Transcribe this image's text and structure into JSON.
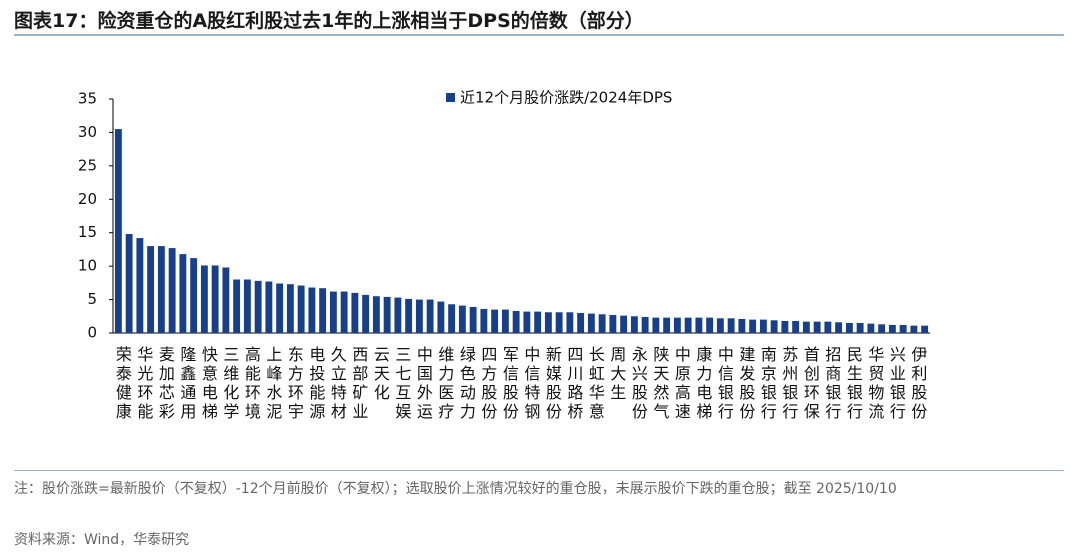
{
  "chart_data": {
    "type": "bar",
    "title": "图表17：险资重仓的A股红利股过去1年的上涨相当于DPS的倍数（部分）",
    "note": "注：股价涨跌=最新股价（不复权）-12个月前股价（不复权）；选取股价上涨情况较好的重仓股，未展示股价下跌的重仓股；截至 2025/10/10",
    "source": "资料来源：Wind，华泰研究",
    "categories": [
      "荣泰健康",
      null,
      "华光环能",
      null,
      "麦加芯彩",
      null,
      "隆鑫通用",
      null,
      "快意电梯",
      null,
      "三维化学",
      null,
      "高能环境",
      null,
      "上峰水泥",
      null,
      "东方环宇",
      null,
      "电投能源",
      null,
      "久立特材",
      null,
      "西部矿业",
      null,
      "云天化",
      null,
      "三七互娱",
      null,
      "中国外运",
      null,
      "维力医疗",
      null,
      "绿色动力",
      null,
      "四方股份",
      null,
      "军信股份",
      null,
      "中信特钢",
      null,
      "新媒股份",
      null,
      "四川路桥",
      null,
      "长虹华意",
      null,
      "周大生",
      null,
      "永兴股份",
      null,
      "陕天然气",
      null,
      "中原高速",
      null,
      "康力电梯",
      null,
      "中信银行",
      null,
      "建发股份",
      null,
      "南京银行",
      null,
      "苏州银行",
      null,
      "首创环保",
      null,
      "招商银行",
      null,
      "民生银行",
      null,
      "华贸物流",
      null,
      "兴业银行",
      null,
      "伊利股份",
      null
    ],
    "series": [
      {
        "name": "近12个月股价涨跌/2024年DPS",
        "color": "#173f8a",
        "values": [
          30.5,
          14.8,
          14.2,
          13.0,
          13.0,
          12.7,
          11.8,
          11.2,
          10.1,
          10.1,
          9.8,
          8.0,
          8.0,
          7.8,
          7.7,
          7.4,
          7.3,
          7.1,
          6.8,
          6.7,
          6.2,
          6.2,
          6.0,
          5.7,
          5.5,
          5.4,
          5.3,
          5.1,
          5.0,
          5.0,
          4.7,
          4.3,
          4.1,
          3.9,
          3.6,
          3.5,
          3.5,
          3.3,
          3.2,
          3.2,
          3.1,
          3.1,
          3.1,
          3.0,
          2.9,
          2.8,
          2.7,
          2.6,
          2.5,
          2.4,
          2.3,
          2.3,
          2.3,
          2.3,
          2.3,
          2.3,
          2.2,
          2.2,
          2.1,
          2.0,
          2.0,
          1.9,
          1.8,
          1.8,
          1.7,
          1.7,
          1.7,
          1.6,
          1.5,
          1.5,
          1.4,
          1.3,
          1.2,
          1.2,
          1.1,
          1.1
        ]
      }
    ],
    "ylim": [
      0,
      35
    ],
    "yticks": [
      0,
      5,
      10,
      15,
      20,
      25,
      30,
      35
    ],
    "grid": false,
    "legend": "top"
  }
}
